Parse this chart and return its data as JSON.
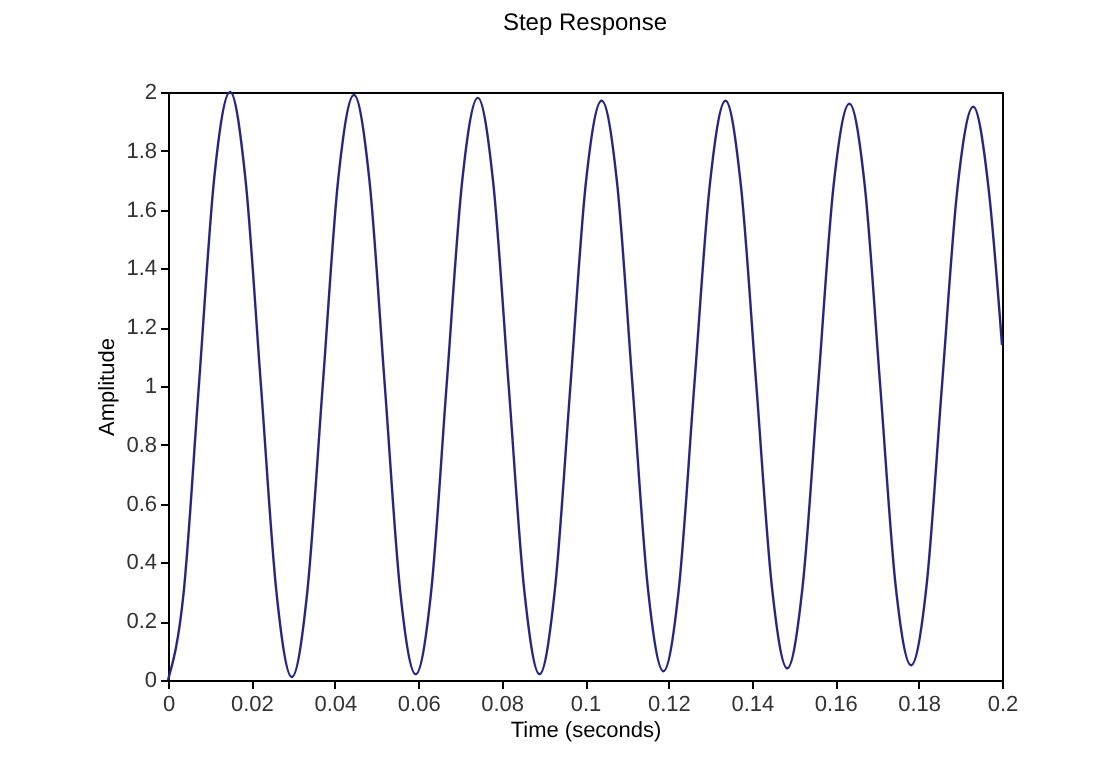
{
  "chart_data": {
    "type": "line",
    "title": "Step Response",
    "xlabel": "Time (seconds)",
    "ylabel": "Amplitude",
    "x": [
      0,
      0.0037,
      0.0074,
      0.0111,
      0.0149,
      0.0186,
      0.0223,
      0.026,
      0.0297,
      0.0334,
      0.0371,
      0.0408,
      0.0446,
      0.0483,
      0.052,
      0.0557,
      0.0594,
      0.0631,
      0.0668,
      0.0705,
      0.0743,
      0.078,
      0.0817,
      0.0854,
      0.0891,
      0.0928,
      0.0965,
      0.1002,
      0.104,
      0.1077,
      0.1114,
      0.1151,
      0.1188,
      0.1225,
      0.1262,
      0.1299,
      0.1337,
      0.1374,
      0.1411,
      0.1448,
      0.1485,
      0.1522,
      0.1559,
      0.1596,
      0.1634,
      0.1671,
      0.1708,
      0.1745,
      0.1782,
      0.1819,
      0.1856,
      0.1893,
      0.1931,
      0.1968,
      0.2
    ],
    "series": [
      {
        "color": "#262680",
        "values": [
          0,
          0.29,
          1,
          1.71,
          2.0,
          1.7,
          1,
          0.3,
          0.01,
          0.3,
          1,
          1.7,
          1.99,
          1.7,
          1,
          0.3,
          0.02,
          0.3,
          1,
          1.69,
          1.98,
          1.69,
          1,
          0.31,
          0.02,
          0.31,
          1,
          1.69,
          1.97,
          1.69,
          1,
          0.31,
          0.03,
          0.31,
          1,
          1.68,
          1.97,
          1.68,
          1,
          0.32,
          0.04,
          0.32,
          1,
          1.68,
          1.96,
          1.68,
          1,
          0.32,
          0.05,
          0.32,
          1,
          1.67,
          1.95,
          1.67,
          1.14
        ]
      }
    ],
    "xlim": [
      0,
      0.2
    ],
    "xticks": [
      0,
      0.02,
      0.04,
      0.06,
      0.08,
      0.1,
      0.12,
      0.14,
      0.16,
      0.18,
      0.2
    ],
    "ylim": [
      0,
      2
    ],
    "yticks": [
      0,
      0.2,
      0.4,
      0.6,
      0.8,
      1,
      1.2,
      1.4,
      1.6,
      1.8,
      2
    ],
    "grid": false,
    "legend": false,
    "marker": "none",
    "line_style": "solid"
  }
}
